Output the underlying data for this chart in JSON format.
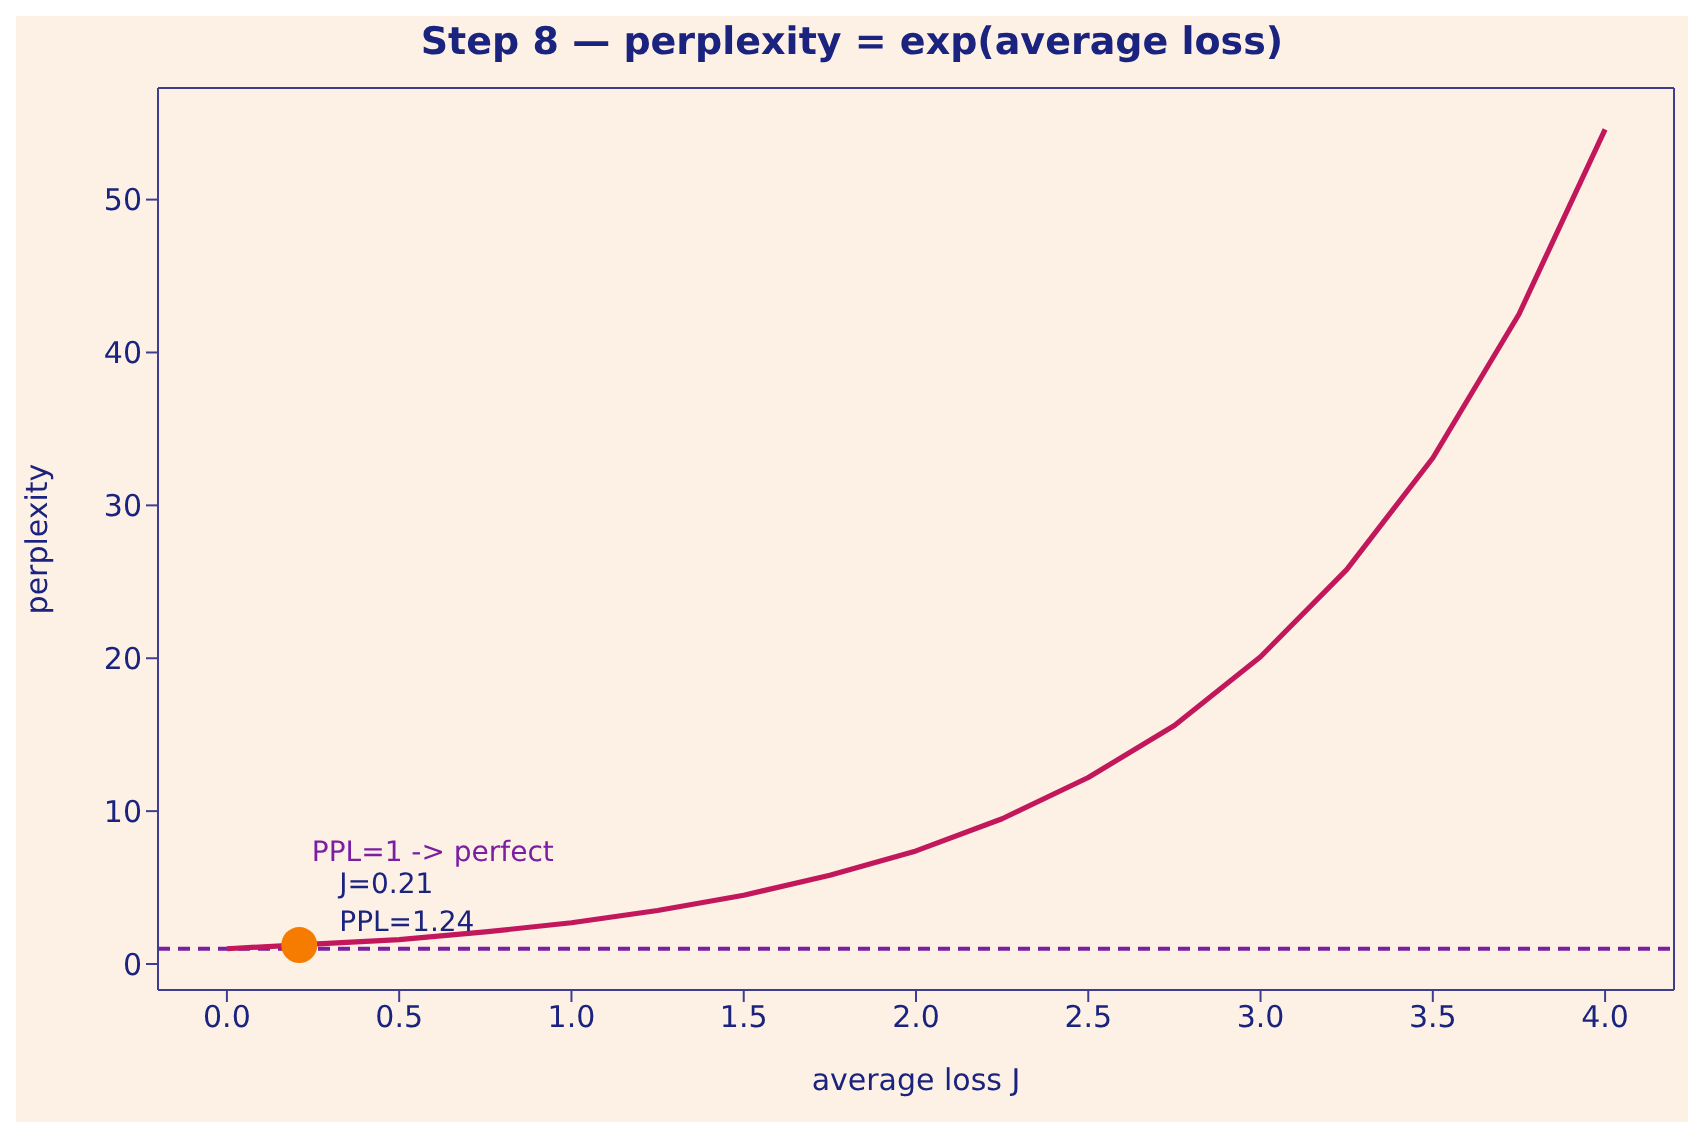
{
  "chart_data": {
    "type": "line",
    "title": "Step 8 — perplexity = exp(average loss)",
    "xlabel": "average loss J",
    "ylabel": "perplexity",
    "x": [
      0,
      0.25,
      0.5,
      0.75,
      1,
      1.25,
      1.5,
      1.75,
      2,
      2.25,
      2.5,
      2.75,
      3,
      3.25,
      3.5,
      3.75,
      4
    ],
    "series": [
      {
        "color": "#c2185b",
        "values": [
          1,
          1.3,
          1.6,
          2.1,
          2.7,
          3.5,
          4.5,
          5.8,
          7.4,
          9.5,
          12.2,
          15.6,
          20.1,
          25.8,
          33.1,
          42.5,
          54.6
        ]
      },
      {
        "type": "scatter",
        "color": "#f57c00",
        "x": [
          0.21
        ],
        "values": [
          1.24
        ],
        "marker": "circle"
      }
    ],
    "annotations": [
      {
        "text": "J=0.21\nPPL=1.24",
        "x": 0.21,
        "y": 1.24
      }
    ],
    "ref_lines": [
      {
        "axis": "y",
        "value": 1,
        "label": "PPL=1 -> perfect",
        "color": "#7b1fa2",
        "line_style": "dashed"
      }
    ],
    "xlim": [
      -0.2,
      4.2
    ],
    "ylim": [
      -1.7,
      57.3
    ],
    "xticks": [
      {
        "value": 0,
        "label": "0.0"
      },
      0.5,
      {
        "value": 1,
        "label": "1.0"
      },
      1.5,
      {
        "value": 2,
        "label": "2.0"
      },
      2.5,
      {
        "value": 3,
        "label": "3.0"
      },
      3.5,
      {
        "value": 4,
        "label": "4.0"
      }
    ],
    "yticks": [
      0,
      10,
      20,
      30,
      40,
      50
    ],
    "grid": false,
    "legend": false
  }
}
